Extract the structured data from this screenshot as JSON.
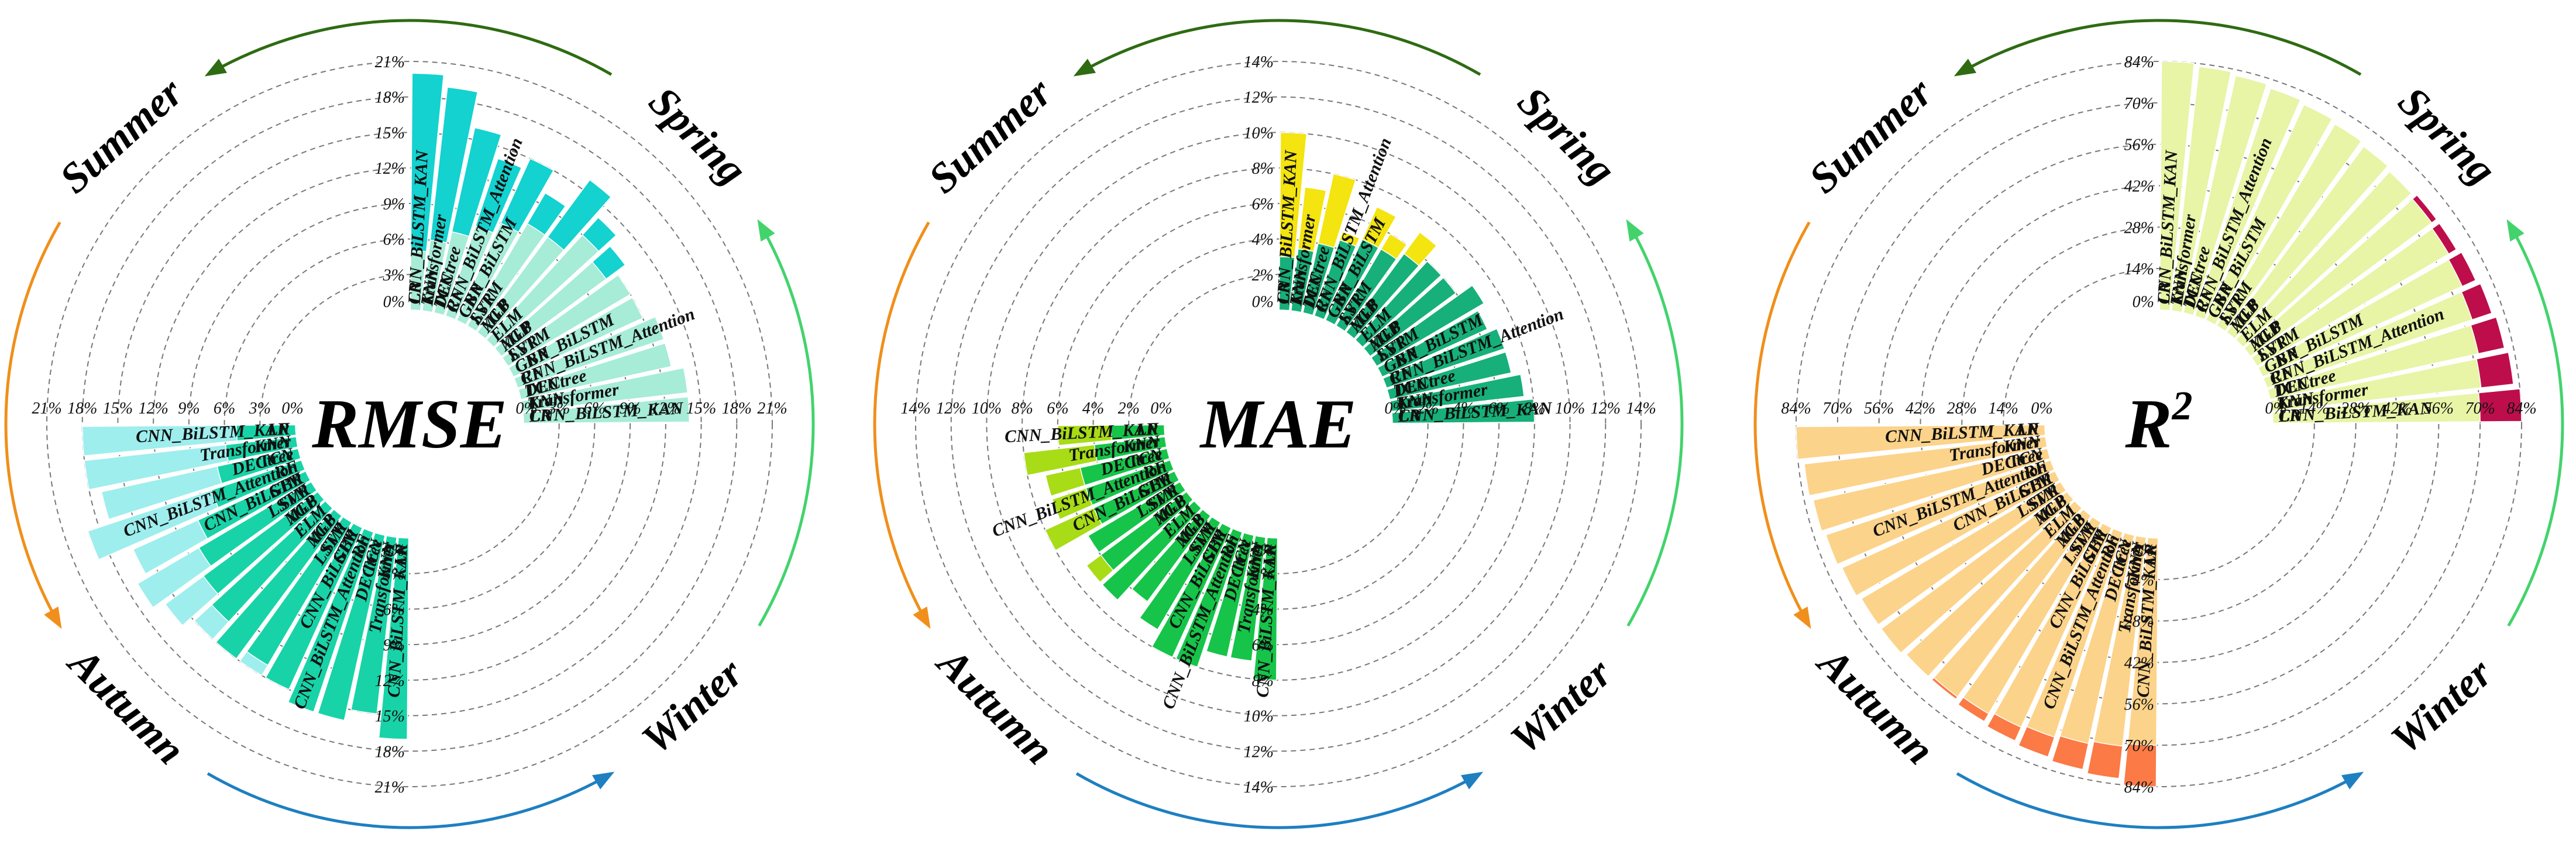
{
  "chart_data": [
    {
      "type": "radial-bar",
      "metric": "RMSE",
      "center_label": "RMSE",
      "center_superscript": "",
      "r_range": [
        0,
        21
      ],
      "tick_values": [
        0,
        3,
        6,
        9,
        12,
        15,
        18,
        21
      ],
      "tick_labels": [
        "0%",
        "3%",
        "6%",
        "9%",
        "12%",
        "15%",
        "18%",
        "21%"
      ],
      "models": [
        "LR",
        "KNN",
        "DECtree",
        "RF",
        "GBR",
        "SVR",
        "MLP",
        "ELM",
        "XGB",
        "LSTM",
        "CNN_BiLSTM",
        "CNN_BiLSTM_Attention",
        "TCN",
        "Transformer",
        "CNN_BiLSTM_KAN"
      ],
      "series": [
        {
          "name": "Spring",
          "color": "#13d2d0",
          "values": [
            20,
            19,
            16,
            14,
            15,
            13,
            16,
            14,
            13,
            12,
            12,
            10,
            9,
            8,
            6
          ]
        },
        {
          "name": "Summer",
          "color": "#9eeeee",
          "values": [
            18,
            18,
            17,
            19,
            16,
            17,
            16,
            15,
            14,
            15,
            13,
            11,
            9,
            8,
            6
          ]
        },
        {
          "name": "Autumn",
          "color": "#18d3a8",
          "values": [
            17,
            15,
            16,
            16,
            15,
            14,
            15,
            13,
            12,
            11,
            10,
            8,
            7,
            6,
            5
          ]
        },
        {
          "name": "Winter",
          "color": "#a6ecd6",
          "values": [
            14,
            14,
            13,
            13,
            12,
            12,
            11,
            12,
            10,
            10,
            9,
            8,
            7,
            6,
            5
          ]
        }
      ]
    },
    {
      "type": "radial-bar",
      "metric": "MAE",
      "center_label": "MAE",
      "center_superscript": "",
      "r_range": [
        0,
        14
      ],
      "tick_values": [
        0,
        2,
        4,
        6,
        8,
        10,
        12,
        14
      ],
      "tick_labels": [
        "0%",
        "2%",
        "4%",
        "6%",
        "8%",
        "10%",
        "12%",
        "14%"
      ],
      "models": [
        "LR",
        "KNN",
        "DECtree",
        "RF",
        "GBR",
        "SVR",
        "MLP",
        "ELM",
        "XGB",
        "LSTM",
        "CNN_BiLSTM",
        "CNN_BiLSTM_Attention",
        "TCN",
        "Transformer",
        "CNN_BiLSTM_KAN"
      ],
      "series": [
        {
          "name": "Spring",
          "color": "#f4e40f",
          "values": [
            10,
            7,
            8,
            5,
            7,
            6,
            7,
            6,
            5,
            5,
            4.5,
            4,
            3.5,
            3,
            2.5
          ]
        },
        {
          "name": "Summer",
          "color": "#a8dc16",
          "values": [
            6,
            8,
            7,
            7,
            8,
            6,
            7,
            7,
            6,
            6,
            7,
            6,
            5,
            4,
            3
          ]
        },
        {
          "name": "Autumn",
          "color": "#16c449",
          "values": [
            8,
            7,
            7,
            8,
            8,
            7,
            6,
            7,
            6,
            6,
            5,
            5,
            5,
            4,
            3
          ]
        },
        {
          "name": "Winter",
          "color": "#17b07a",
          "values": [
            8,
            7.5,
            7,
            7,
            6.5,
            7,
            6,
            6,
            5.5,
            5,
            5,
            4.5,
            4,
            3.5,
            3
          ]
        }
      ]
    },
    {
      "type": "radial-bar",
      "metric": "R2",
      "center_label": "R",
      "center_superscript": "2",
      "r_range": [
        0,
        84
      ],
      "tick_values": [
        0,
        14,
        28,
        42,
        56,
        70,
        84
      ],
      "tick_labels": [
        "0%",
        "14%",
        "28%",
        "42%",
        "56%",
        "70%",
        "84%"
      ],
      "models": [
        "LR",
        "KNN",
        "DECtree",
        "RF",
        "GBR",
        "SVR",
        "MLP",
        "ELM",
        "XGB",
        "LSTM",
        "CNN_BiLSTM",
        "CNN_BiLSTM_Attention",
        "TCN",
        "Transformer",
        "CNN_BiLSTM_KAN"
      ],
      "series": [
        {
          "name": "Spring",
          "color": "#bd0e4b",
          "values": [
            72,
            74,
            73,
            74,
            75,
            76,
            76,
            77,
            78,
            78,
            79,
            80,
            81,
            82,
            84
          ]
        },
        {
          "name": "Summer",
          "color": "#fb7a45",
          "values": [
            72,
            73,
            73,
            74,
            75,
            75,
            76,
            77,
            77,
            78,
            79,
            80,
            81,
            82,
            84
          ]
        },
        {
          "name": "Autumn",
          "color": "#fcd38a",
          "values": [
            70,
            71,
            72,
            73,
            74,
            75,
            76,
            77,
            78,
            78,
            79,
            80,
            81,
            82,
            84
          ]
        },
        {
          "name": "Winter",
          "color": "#e8f4a6",
          "values": [
            70,
            71,
            72,
            73,
            74,
            75,
            76,
            77,
            78,
            79,
            80,
            81,
            82,
            83,
            84
          ]
        }
      ]
    }
  ],
  "season_labels": [
    "Spring",
    "Summer",
    "Autumn",
    "Winter"
  ],
  "arrow_colors": {
    "Summer": "#2e6b12",
    "Autumn": "#f08f1b",
    "Winter": "#1e7fc1",
    "Spring": "#43d36c"
  }
}
